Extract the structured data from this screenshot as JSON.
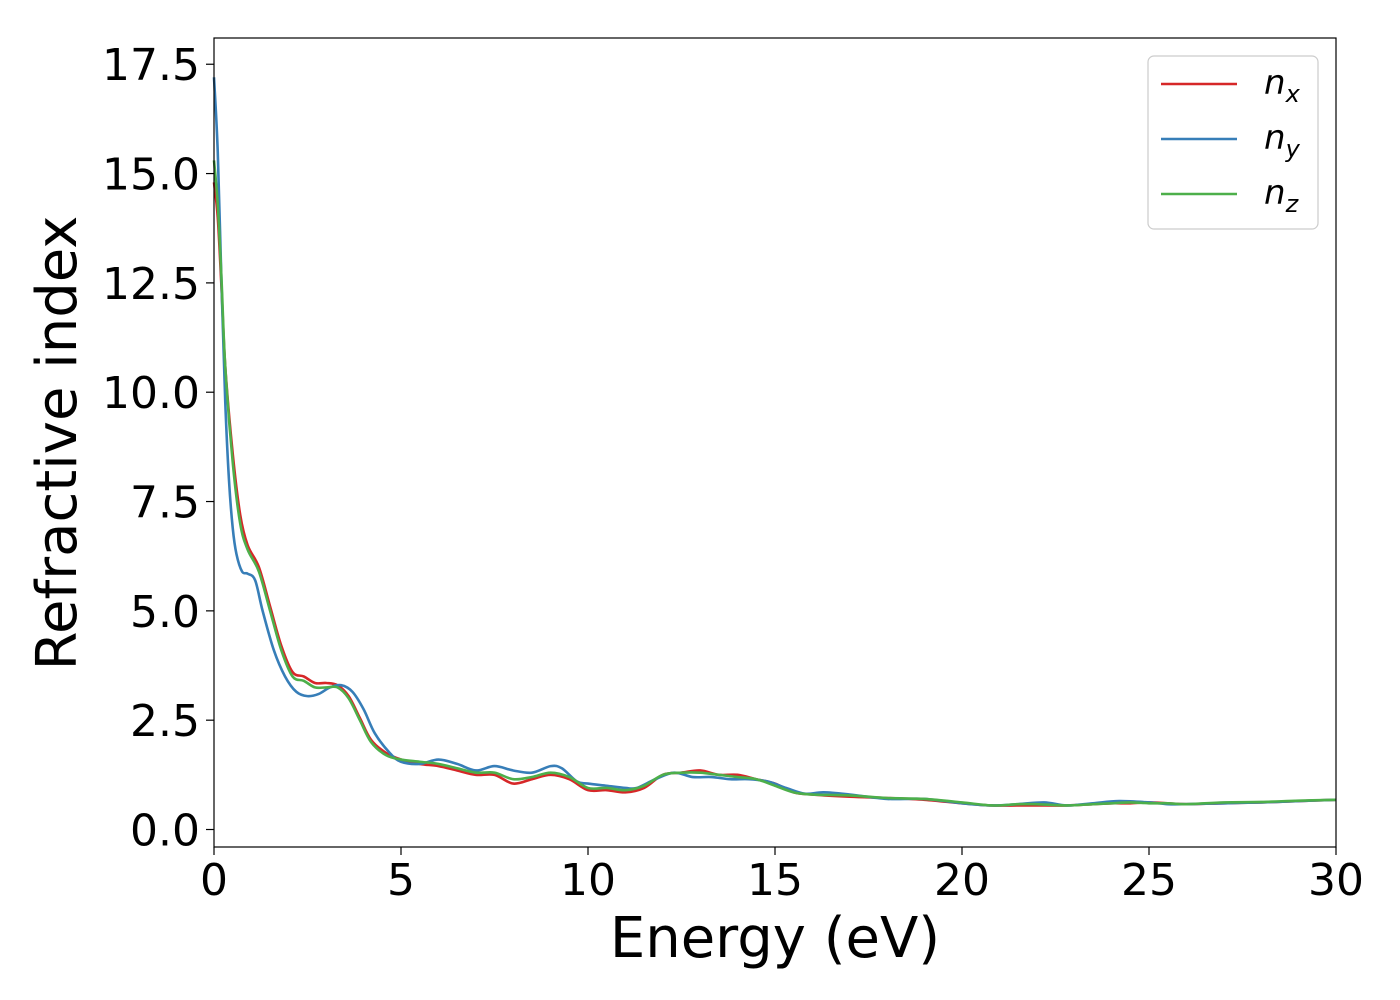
{
  "chart_data": {
    "type": "line",
    "xlabel": "Energy (eV)",
    "ylabel": "Refractive index",
    "xlim": [
      0,
      30
    ],
    "ylim": [
      -0.4,
      18.1
    ],
    "xticks": [
      0,
      5,
      10,
      15,
      20,
      25,
      30
    ],
    "xtick_labels": [
      "0",
      "5",
      "10",
      "15",
      "20",
      "25",
      "30"
    ],
    "yticks": [
      0.0,
      2.5,
      5.0,
      7.5,
      10.0,
      12.5,
      15.0,
      17.5
    ],
    "ytick_labels": [
      "0.0",
      "2.5",
      "5.0",
      "7.5",
      "10.0",
      "12.5",
      "15.0",
      "17.5"
    ],
    "grid": false,
    "legend_position": "top-right",
    "series": [
      {
        "name": "n",
        "subscript": "x",
        "color": "#d62728",
        "x": [
          0,
          0.1,
          0.2,
          0.3,
          0.5,
          0.7,
          0.9,
          1.2,
          1.5,
          1.8,
          2.1,
          2.4,
          2.7,
          3.0,
          3.3,
          3.6,
          3.9,
          4.2,
          4.6,
          5.0,
          5.5,
          6.0,
          6.5,
          7.0,
          7.5,
          8.0,
          8.5,
          9.0,
          9.5,
          10.0,
          10.5,
          11.0,
          11.5,
          12.0,
          12.5,
          13.0,
          13.5,
          14.0,
          14.5,
          15.0,
          15.5,
          16.0,
          17.0,
          18.0,
          19.0,
          20.0,
          20.8,
          21.5,
          22.0,
          22.8,
          23.5,
          24.0,
          24.5,
          25.0,
          25.5,
          26.0,
          27.0,
          28.0,
          29.0,
          30.0
        ],
        "y": [
          14.8,
          14.0,
          12.4,
          10.6,
          8.6,
          7.2,
          6.5,
          6.0,
          5.1,
          4.2,
          3.6,
          3.5,
          3.35,
          3.35,
          3.3,
          3.05,
          2.55,
          2.05,
          1.75,
          1.6,
          1.5,
          1.45,
          1.35,
          1.25,
          1.25,
          1.05,
          1.15,
          1.25,
          1.15,
          0.9,
          0.9,
          0.85,
          0.95,
          1.25,
          1.3,
          1.35,
          1.25,
          1.25,
          1.15,
          1.05,
          0.85,
          0.8,
          0.75,
          0.72,
          0.68,
          0.6,
          0.55,
          0.55,
          0.55,
          0.55,
          0.58,
          0.6,
          0.6,
          0.62,
          0.6,
          0.58,
          0.6,
          0.62,
          0.65,
          0.68
        ]
      },
      {
        "name": "n",
        "subscript": "y",
        "color": "#377eb8",
        "x": [
          0,
          0.1,
          0.2,
          0.3,
          0.4,
          0.5,
          0.6,
          0.75,
          0.9,
          1.1,
          1.3,
          1.6,
          1.9,
          2.2,
          2.5,
          2.8,
          3.1,
          3.4,
          3.7,
          4.0,
          4.3,
          4.7,
          5.0,
          5.5,
          6.0,
          6.5,
          7.0,
          7.5,
          8.0,
          8.5,
          9.0,
          9.3,
          9.7,
          10.0,
          10.5,
          11.0,
          11.3,
          11.8,
          12.3,
          12.8,
          13.3,
          13.8,
          14.3,
          14.8,
          15.3,
          15.8,
          16.3,
          17.0,
          18.0,
          19.0,
          20.0,
          20.8,
          21.5,
          22.2,
          22.8,
          23.5,
          24.2,
          25.0,
          25.5,
          26.0,
          27.0,
          28.0,
          29.0,
          30.0
        ],
        "y": [
          17.2,
          15.5,
          12.5,
          9.8,
          8.0,
          6.9,
          6.3,
          5.9,
          5.85,
          5.7,
          5.0,
          4.1,
          3.5,
          3.15,
          3.05,
          3.1,
          3.25,
          3.3,
          3.15,
          2.75,
          2.2,
          1.75,
          1.55,
          1.5,
          1.6,
          1.5,
          1.35,
          1.45,
          1.35,
          1.3,
          1.45,
          1.4,
          1.1,
          1.05,
          1.0,
          0.95,
          0.95,
          1.15,
          1.3,
          1.2,
          1.2,
          1.15,
          1.15,
          1.1,
          0.95,
          0.82,
          0.85,
          0.8,
          0.7,
          0.7,
          0.6,
          0.55,
          0.58,
          0.62,
          0.55,
          0.6,
          0.65,
          0.62,
          0.58,
          0.58,
          0.6,
          0.62,
          0.65,
          0.68
        ]
      },
      {
        "name": "n",
        "subscript": "z",
        "color": "#4daf4a",
        "x": [
          0,
          0.1,
          0.2,
          0.3,
          0.5,
          0.7,
          0.9,
          1.2,
          1.5,
          1.8,
          2.1,
          2.4,
          2.7,
          3.0,
          3.3,
          3.6,
          3.9,
          4.2,
          4.6,
          5.0,
          5.5,
          6.0,
          6.5,
          7.0,
          7.5,
          8.0,
          8.5,
          9.0,
          9.5,
          10.0,
          10.5,
          11.0,
          11.5,
          12.0,
          12.5,
          13.0,
          13.5,
          14.0,
          14.5,
          15.0,
          15.5,
          16.0,
          17.0,
          18.0,
          19.0,
          20.0,
          20.8,
          21.5,
          22.0,
          22.8,
          23.5,
          24.0,
          24.5,
          25.0,
          25.5,
          26.0,
          27.0,
          28.0,
          29.0,
          30.0
        ],
        "y": [
          15.3,
          14.3,
          12.6,
          10.6,
          8.4,
          7.0,
          6.4,
          5.9,
          5.0,
          4.1,
          3.5,
          3.4,
          3.25,
          3.25,
          3.25,
          3.0,
          2.5,
          2.0,
          1.7,
          1.6,
          1.55,
          1.5,
          1.4,
          1.3,
          1.3,
          1.15,
          1.2,
          1.3,
          1.2,
          0.95,
          0.95,
          0.9,
          1.0,
          1.25,
          1.3,
          1.3,
          1.25,
          1.2,
          1.15,
          1.0,
          0.85,
          0.8,
          0.78,
          0.72,
          0.7,
          0.62,
          0.55,
          0.58,
          0.58,
          0.55,
          0.58,
          0.6,
          0.62,
          0.6,
          0.6,
          0.58,
          0.62,
          0.63,
          0.66,
          0.68
        ]
      }
    ]
  }
}
